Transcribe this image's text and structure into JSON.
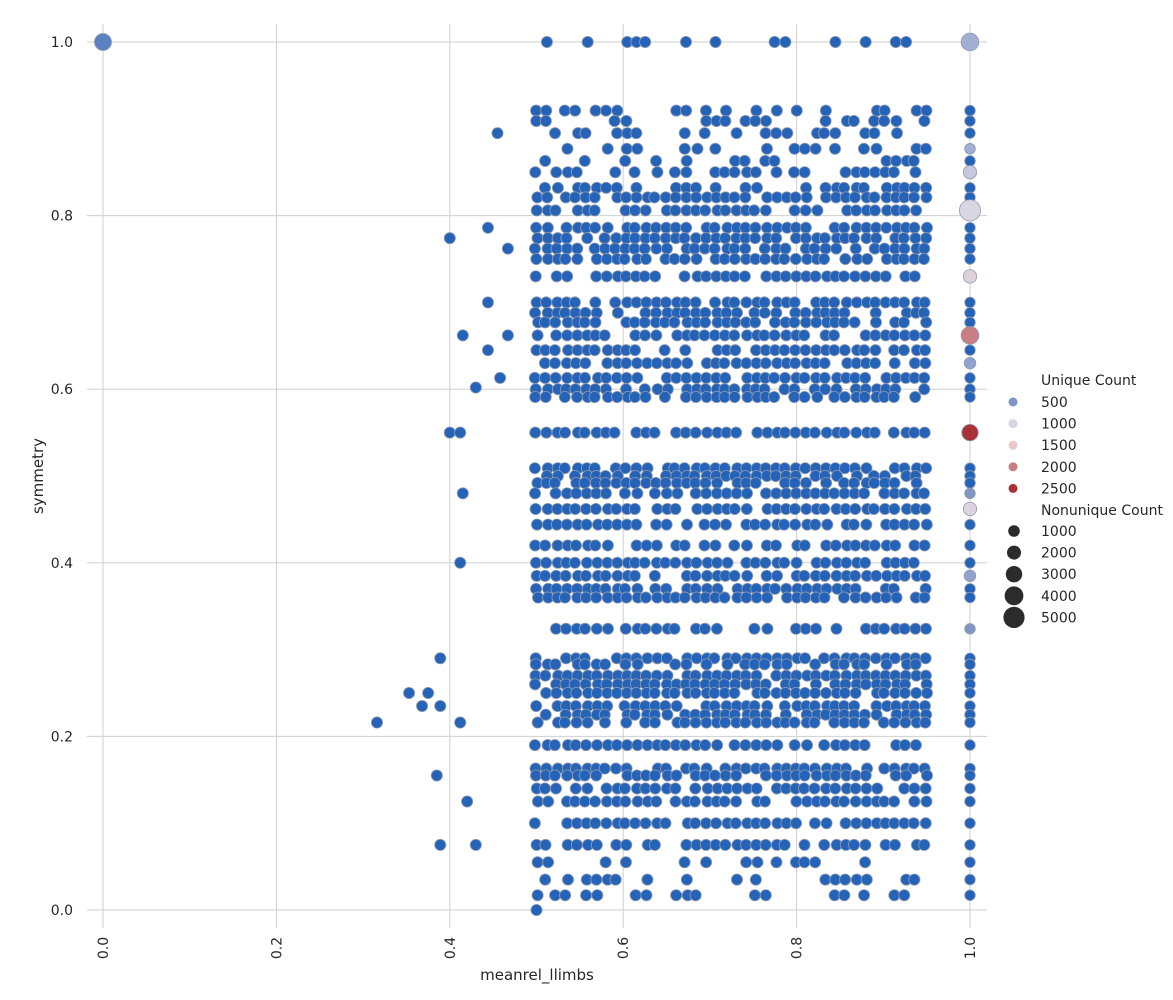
{
  "chart_data": {
    "type": "scatter",
    "title": "",
    "xlabel": "meanrel_llimbs",
    "ylabel": "symmetry",
    "xlim": [
      0.0,
      1.0
    ],
    "ylim": [
      0.0,
      1.0
    ],
    "grid": true,
    "legend_placement": "right",
    "xticks": [
      "0.0",
      "0.2",
      "0.4",
      "0.6",
      "0.8",
      "1.0"
    ],
    "yticks": [
      "0.0",
      "0.2",
      "0.4",
      "0.6",
      "0.8",
      "1.0"
    ],
    "dense_region": {
      "x_range": [
        0.5,
        0.95
      ],
      "y_range": [
        0.0,
        1.0
      ],
      "color": "#2563b8"
    },
    "y_levels": [
      1.0,
      0.921,
      0.909,
      0.895,
      0.877,
      0.863,
      0.85,
      0.832,
      0.821,
      0.806,
      0.786,
      0.774,
      0.762,
      0.75,
      0.73,
      0.7,
      0.688,
      0.677,
      0.662,
      0.645,
      0.63,
      0.613,
      0.6,
      0.591,
      0.55,
      0.509,
      0.5,
      0.492,
      0.48,
      0.462,
      0.444,
      0.42,
      0.4,
      0.385,
      0.37,
      0.36,
      0.324,
      0.29,
      0.283,
      0.27,
      0.26,
      0.25,
      0.235,
      0.225,
      0.216,
      0.19,
      0.163,
      0.155,
      0.14,
      0.125,
      0.1,
      0.075,
      0.055,
      0.035,
      0.017
    ],
    "outliers": [
      {
        "x": 0.0,
        "y": 1.0,
        "unique": 300,
        "nonunique": 2500
      },
      {
        "x": 0.5,
        "y": 0.0,
        "unique": 1,
        "nonunique": 200
      },
      {
        "x": 0.316,
        "y": 0.216,
        "unique": 1,
        "nonunique": 200
      },
      {
        "x": 0.353,
        "y": 0.25,
        "unique": 1,
        "nonunique": 200
      },
      {
        "x": 0.368,
        "y": 0.235,
        "unique": 1,
        "nonunique": 200
      },
      {
        "x": 0.375,
        "y": 0.25,
        "unique": 1,
        "nonunique": 200
      },
      {
        "x": 0.385,
        "y": 0.155,
        "unique": 1,
        "nonunique": 200
      },
      {
        "x": 0.389,
        "y": 0.235,
        "unique": 1,
        "nonunique": 200
      },
      {
        "x": 0.389,
        "y": 0.075,
        "unique": 1,
        "nonunique": 200
      },
      {
        "x": 0.389,
        "y": 0.29,
        "unique": 1,
        "nonunique": 200
      },
      {
        "x": 0.4,
        "y": 0.774,
        "unique": 1,
        "nonunique": 200
      },
      {
        "x": 0.4,
        "y": 0.55,
        "unique": 1,
        "nonunique": 200
      },
      {
        "x": 0.412,
        "y": 0.55,
        "unique": 1,
        "nonunique": 200
      },
      {
        "x": 0.412,
        "y": 0.4,
        "unique": 1,
        "nonunique": 200
      },
      {
        "x": 0.412,
        "y": 0.216,
        "unique": 1,
        "nonunique": 200
      },
      {
        "x": 0.415,
        "y": 0.662,
        "unique": 1,
        "nonunique": 200
      },
      {
        "x": 0.415,
        "y": 0.48,
        "unique": 1,
        "nonunique": 200
      },
      {
        "x": 0.42,
        "y": 0.125,
        "unique": 1,
        "nonunique": 200
      },
      {
        "x": 0.43,
        "y": 0.602,
        "unique": 1,
        "nonunique": 200
      },
      {
        "x": 0.444,
        "y": 0.786,
        "unique": 1,
        "nonunique": 200
      },
      {
        "x": 0.444,
        "y": 0.7,
        "unique": 1,
        "nonunique": 200
      },
      {
        "x": 0.444,
        "y": 0.645,
        "unique": 1,
        "nonunique": 200
      },
      {
        "x": 0.455,
        "y": 0.895,
        "unique": 1,
        "nonunique": 200
      },
      {
        "x": 0.458,
        "y": 0.613,
        "unique": 1,
        "nonunique": 200
      },
      {
        "x": 0.467,
        "y": 0.762,
        "unique": 1,
        "nonunique": 200
      },
      {
        "x": 0.467,
        "y": 0.662,
        "unique": 1,
        "nonunique": 200
      },
      {
        "x": 0.43,
        "y": 0.075,
        "unique": 1,
        "nonunique": 200
      }
    ],
    "right_column": [
      {
        "x": 1.0,
        "y": 1.0,
        "unique": 700,
        "nonunique": 3500
      },
      {
        "x": 1.0,
        "y": 0.877,
        "unique": 700,
        "nonunique": 1200
      },
      {
        "x": 1.0,
        "y": 0.85,
        "unique": 900,
        "nonunique": 2000
      },
      {
        "x": 1.0,
        "y": 0.806,
        "unique": 1000,
        "nonunique": 5000
      },
      {
        "x": 1.0,
        "y": 0.73,
        "unique": 1150,
        "nonunique": 2000
      },
      {
        "x": 1.0,
        "y": 0.662,
        "unique": 2000,
        "nonunique": 3500
      },
      {
        "x": 1.0,
        "y": 0.63,
        "unique": 600,
        "nonunique": 1500
      },
      {
        "x": 1.0,
        "y": 0.55,
        "unique": 2700,
        "nonunique": 3000
      },
      {
        "x": 1.0,
        "y": 0.48,
        "unique": 500,
        "nonunique": 1000
      },
      {
        "x": 1.0,
        "y": 0.462,
        "unique": 1100,
        "nonunique": 2000
      },
      {
        "x": 1.0,
        "y": 0.385,
        "unique": 600,
        "nonunique": 1500
      },
      {
        "x": 1.0,
        "y": 0.324,
        "unique": 500,
        "nonunique": 1000
      }
    ],
    "hue_legend": {
      "title": "Unique Count",
      "entries": [
        {
          "label": "500",
          "color": "#7f95c6"
        },
        {
          "label": "1000",
          "color": "#d8d6e3"
        },
        {
          "label": "1500",
          "color": "#e8c8c9"
        },
        {
          "label": "2000",
          "color": "#c97f82"
        },
        {
          "label": "2500",
          "color": "#a83236"
        }
      ]
    },
    "size_legend": {
      "title": "Nonunique Count",
      "entries": [
        {
          "label": "1000",
          "value": 1000
        },
        {
          "label": "2000",
          "value": 2000
        },
        {
          "label": "3000",
          "value": 3000
        },
        {
          "label": "4000",
          "value": 4000
        },
        {
          "label": "5000",
          "value": 5000
        }
      ]
    }
  }
}
